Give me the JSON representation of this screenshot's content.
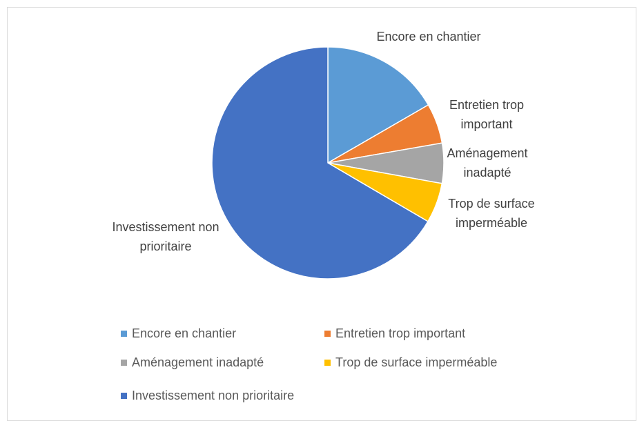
{
  "chart_data": {
    "type": "pie",
    "categories": [
      "Encore en chantier",
      "Entretien trop important",
      "Aménagement inadapté",
      "Trop de surface imperméable",
      "Investissement non prioritaire"
    ],
    "values": [
      16.7,
      5.6,
      5.6,
      5.6,
      66.7
    ],
    "colors": [
      "#5b9bd5",
      "#ed7d31",
      "#a5a5a5",
      "#ffc000",
      "#4472c4"
    ],
    "legend": "bottom"
  }
}
